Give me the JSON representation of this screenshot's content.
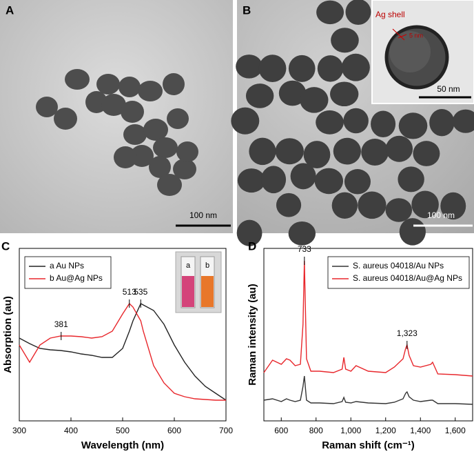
{
  "panels": [
    {
      "letter": "A",
      "scale_bar": "100 nm"
    },
    {
      "letter": "B",
      "scale_bar": "100 nm",
      "inset_label": "Ag shell",
      "inset_thickness": "5 nm",
      "inset_scale_bar": "50 nm"
    }
  ],
  "chart_data": [
    {
      "type": "line",
      "letter": "C",
      "x_label": "Wavelength (nm)",
      "y_label": "Absorption (au)",
      "x": [
        300,
        320,
        340,
        360,
        380,
        400,
        420,
        440,
        460,
        480,
        500,
        513,
        520,
        535,
        540,
        560,
        580,
        600,
        620,
        640,
        660,
        680,
        700
      ],
      "series": [
        {
          "name": "a Au NPs",
          "color": "#222222",
          "values": [
            0.48,
            0.448,
            0.42,
            0.412,
            0.408,
            0.4,
            0.388,
            0.38,
            0.368,
            0.368,
            0.42,
            0.52,
            0.58,
            0.68,
            0.672,
            0.64,
            0.56,
            0.44,
            0.34,
            0.26,
            0.2,
            0.16,
            0.12
          ]
        },
        {
          "name": "b Au@Ag NPs",
          "color": "#e8262b",
          "values": [
            0.44,
            0.34,
            0.44,
            0.48,
            0.492,
            0.492,
            0.488,
            0.48,
            0.488,
            0.52,
            0.62,
            0.68,
            0.66,
            0.58,
            0.52,
            0.32,
            0.22,
            0.16,
            0.14,
            0.128,
            0.124,
            0.12,
            0.12
          ]
        }
      ],
      "annotations": [
        {
          "x": 381,
          "y": 0.492
        },
        {
          "x": 513,
          "y": 0.68
        },
        {
          "x": 535,
          "y": 0.68
        }
      ],
      "inset_labels": [
        "a",
        "b"
      ],
      "xlim": [
        300,
        700
      ],
      "xticks": [
        300,
        400,
        500,
        600,
        700
      ],
      "ylim": [
        0,
        1
      ],
      "legend": "upper-left"
    },
    {
      "type": "line",
      "letter": "D",
      "x_label": "Raman shift (cm⁻¹)",
      "y_label": "Raman intensity (au)",
      "x": [
        500,
        550,
        600,
        630,
        650,
        680,
        710,
        725,
        733,
        745,
        770,
        820,
        900,
        950,
        960,
        970,
        1000,
        1030,
        1100,
        1200,
        1250,
        1300,
        1315,
        1323,
        1335,
        1360,
        1400,
        1460,
        1470,
        1500,
        1600,
        1700
      ],
      "series": [
        {
          "name": "S. aureus 04018/Au NPs",
          "color": "#333333",
          "values": [
            0.12,
            0.128,
            0.112,
            0.128,
            0.12,
            0.112,
            0.12,
            0.2,
            0.26,
            0.12,
            0.104,
            0.104,
            0.1,
            0.112,
            0.136,
            0.108,
            0.104,
            0.112,
            0.104,
            0.1,
            0.108,
            0.128,
            0.16,
            0.168,
            0.14,
            0.12,
            0.112,
            0.12,
            0.12,
            0.1,
            0.1,
            0.096
          ]
        },
        {
          "name": "S. aureus 04018/Au@Ag NPs",
          "color": "#e8262b",
          "values": [
            0.28,
            0.352,
            0.328,
            0.36,
            0.352,
            0.32,
            0.328,
            0.56,
            0.928,
            0.36,
            0.288,
            0.288,
            0.28,
            0.3,
            0.368,
            0.3,
            0.288,
            0.32,
            0.288,
            0.28,
            0.312,
            0.36,
            0.42,
            0.44,
            0.38,
            0.32,
            0.312,
            0.328,
            0.34,
            0.272,
            0.268,
            0.26
          ]
        }
      ],
      "annotations": [
        {
          "x": 733,
          "y": 0.928
        },
        {
          "x": 1323,
          "y": 0.44,
          "label": "1,323"
        }
      ],
      "xlim": [
        500,
        1700
      ],
      "xticks": [
        600,
        800,
        {
          "value": 1000,
          "label": "1,000"
        },
        {
          "value": 1200,
          "label": "1,200"
        },
        {
          "value": 1400,
          "label": "1,400"
        },
        {
          "value": 1600,
          "label": "1,600"
        }
      ],
      "ylim": [
        0,
        1
      ],
      "legend": "upper-right"
    }
  ]
}
